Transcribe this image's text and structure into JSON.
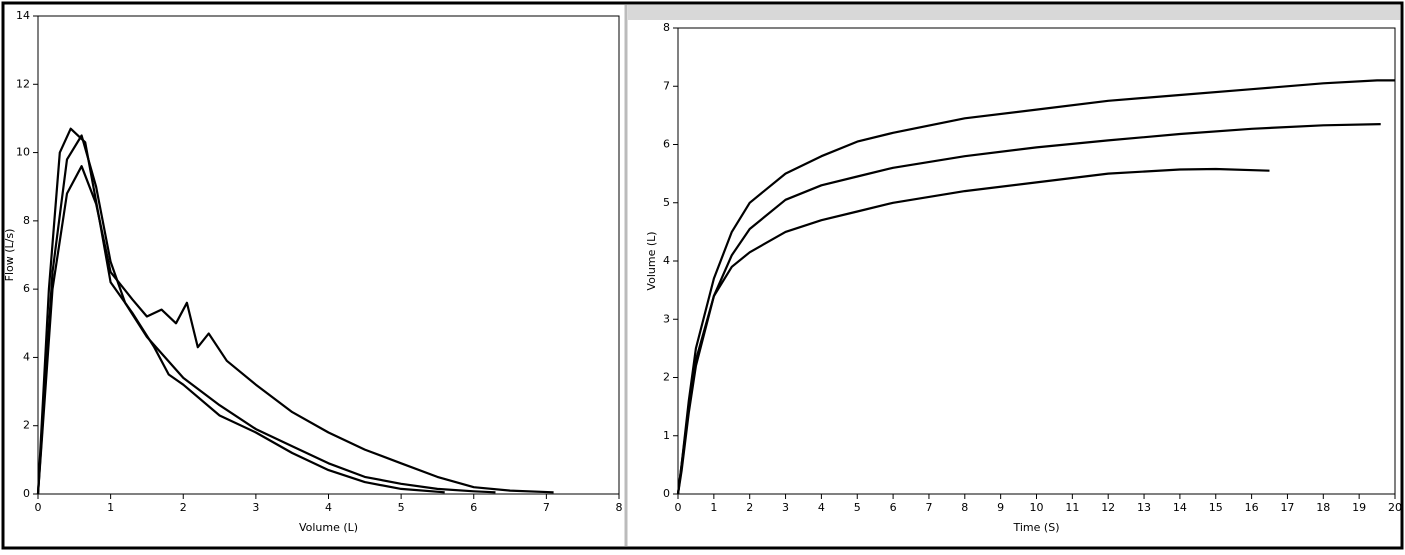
{
  "chart_data": [
    {
      "type": "line",
      "x_label": "Volume (L)",
      "y_label": "Flow (L/s)",
      "xlim": [
        0,
        8
      ],
      "ylim": [
        0,
        14
      ],
      "xticks": [
        0,
        1,
        2,
        3,
        4,
        5,
        6,
        7,
        8
      ],
      "yticks": [
        0,
        2,
        4,
        6,
        8,
        10,
        12,
        14
      ],
      "series": [
        {
          "color": "#000000",
          "x": [
            0,
            0.2,
            0.4,
            0.6,
            0.8,
            1,
            1.3,
            1.5,
            1.7,
            1.9,
            2.05,
            2.2,
            2.35,
            2.6,
            3,
            3.5,
            4,
            4.5,
            5,
            5.5,
            6,
            6.5,
            7.1
          ],
          "values": [
            0,
            6,
            8.8,
            9.6,
            8.5,
            6.5,
            5.7,
            5.2,
            5.4,
            5.0,
            5.6,
            4.3,
            4.7,
            3.9,
            3.2,
            2.4,
            1.8,
            1.3,
            0.9,
            0.5,
            0.2,
            0.1,
            0.05
          ]
        },
        {
          "color": "#000000",
          "x": [
            0,
            0.15,
            0.3,
            0.45,
            0.65,
            0.85,
            1,
            1.3,
            1.6,
            1.8,
            2,
            2.5,
            3,
            3.5,
            4,
            4.5,
            5,
            5.6
          ],
          "values": [
            0,
            6,
            10,
            10.7,
            10.3,
            8,
            6.2,
            5.3,
            4.3,
            3.5,
            3.2,
            2.3,
            1.8,
            1.2,
            0.7,
            0.35,
            0.15,
            0.05
          ]
        },
        {
          "color": "#000000",
          "x": [
            0,
            0.2,
            0.4,
            0.6,
            0.8,
            1,
            1.2,
            1.5,
            2,
            2.5,
            3,
            3.5,
            4,
            4.5,
            5,
            5.5,
            6,
            6.3
          ],
          "values": [
            0,
            6.5,
            9.8,
            10.5,
            9,
            6.8,
            5.6,
            4.6,
            3.4,
            2.6,
            1.9,
            1.4,
            0.9,
            0.5,
            0.3,
            0.15,
            0.08,
            0.05
          ]
        }
      ]
    },
    {
      "type": "line",
      "x_label": "Time (S)",
      "y_label": "Volume (L)",
      "xlim": [
        0,
        20
      ],
      "ylim": [
        0,
        8
      ],
      "xticks": [
        0,
        1,
        2,
        3,
        4,
        5,
        6,
        7,
        8,
        9,
        10,
        11,
        12,
        13,
        14,
        15,
        16,
        17,
        18,
        19,
        20
      ],
      "yticks": [
        0,
        1,
        2,
        3,
        4,
        5,
        6,
        7,
        8
      ],
      "series": [
        {
          "color": "#000000",
          "x": [
            0,
            0.1,
            0.3,
            0.5,
            1,
            1.5,
            2,
            3,
            4,
            5,
            6,
            8,
            10,
            12,
            14,
            16,
            18,
            19.5,
            20
          ],
          "values": [
            0,
            0.5,
            1.6,
            2.5,
            3.7,
            4.5,
            5,
            5.5,
            5.8,
            6.05,
            6.2,
            6.45,
            6.6,
            6.75,
            6.85,
            6.95,
            7.05,
            7.1,
            7.1
          ]
        },
        {
          "color": "#000000",
          "x": [
            0,
            0.1,
            0.3,
            0.5,
            1,
            1.5,
            2,
            3,
            4,
            5,
            6,
            8,
            10,
            12,
            14,
            16,
            18,
            19.6
          ],
          "values": [
            0,
            0.4,
            1.4,
            2.2,
            3.4,
            4.1,
            4.55,
            5.05,
            5.3,
            5.45,
            5.6,
            5.8,
            5.95,
            6.07,
            6.18,
            6.27,
            6.33,
            6.35
          ]
        },
        {
          "color": "#000000",
          "x": [
            0,
            0.1,
            0.3,
            0.5,
            1,
            1.5,
            2,
            3,
            4,
            5,
            6,
            8,
            10,
            12,
            14,
            15,
            16.5
          ],
          "values": [
            0,
            0.5,
            1.5,
            2.3,
            3.4,
            3.9,
            4.15,
            4.5,
            4.7,
            4.85,
            5.0,
            5.2,
            5.35,
            5.5,
            5.57,
            5.58,
            5.55
          ]
        }
      ]
    }
  ]
}
